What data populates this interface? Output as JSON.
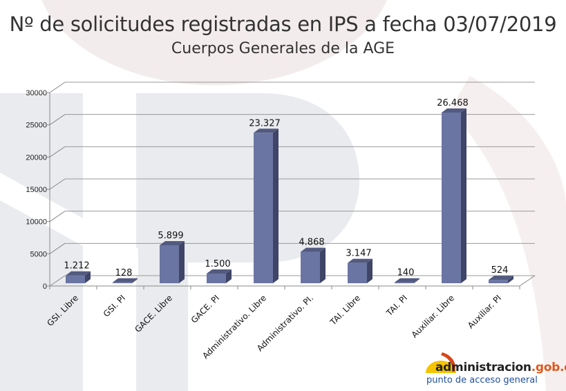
{
  "header": {
    "title": "Nº de solicitudes registradas en IPS a fecha 03/07/2019",
    "subtitle": "Cuerpos Generales de la AGE"
  },
  "logo": {
    "name": "administracion",
    "domain": ".gob.es",
    "tagline": "punto de acceso general"
  },
  "chart_data": {
    "type": "bar",
    "title": "Nº de solicitudes registradas en IPS a fecha 03/07/2019",
    "subtitle": "Cuerpos Generales de la AGE",
    "categories": [
      "GSI. Libre",
      "GSI. PI",
      "GACE. Libre",
      "GACE. PI",
      "Administrativo. Libre",
      "Administrativo. PI.",
      "TAI. Libre",
      "TAI. PI",
      "Auxiliar. Libre",
      "Auxiliar. PI"
    ],
    "values": [
      1212,
      128,
      5899,
      1500,
      23327,
      4868,
      3147,
      140,
      26468,
      524
    ],
    "data_labels": [
      "1.212",
      "128",
      "5.899",
      "1.500",
      "23.327",
      "4.868",
      "3.147",
      "140",
      "26.468",
      "524"
    ],
    "yticks": [
      0,
      5000,
      10000,
      15000,
      20000,
      25000,
      30000
    ],
    "ylim": [
      0,
      30000
    ],
    "grid": true,
    "legend": "none",
    "bar_color": "#6b75a3"
  }
}
